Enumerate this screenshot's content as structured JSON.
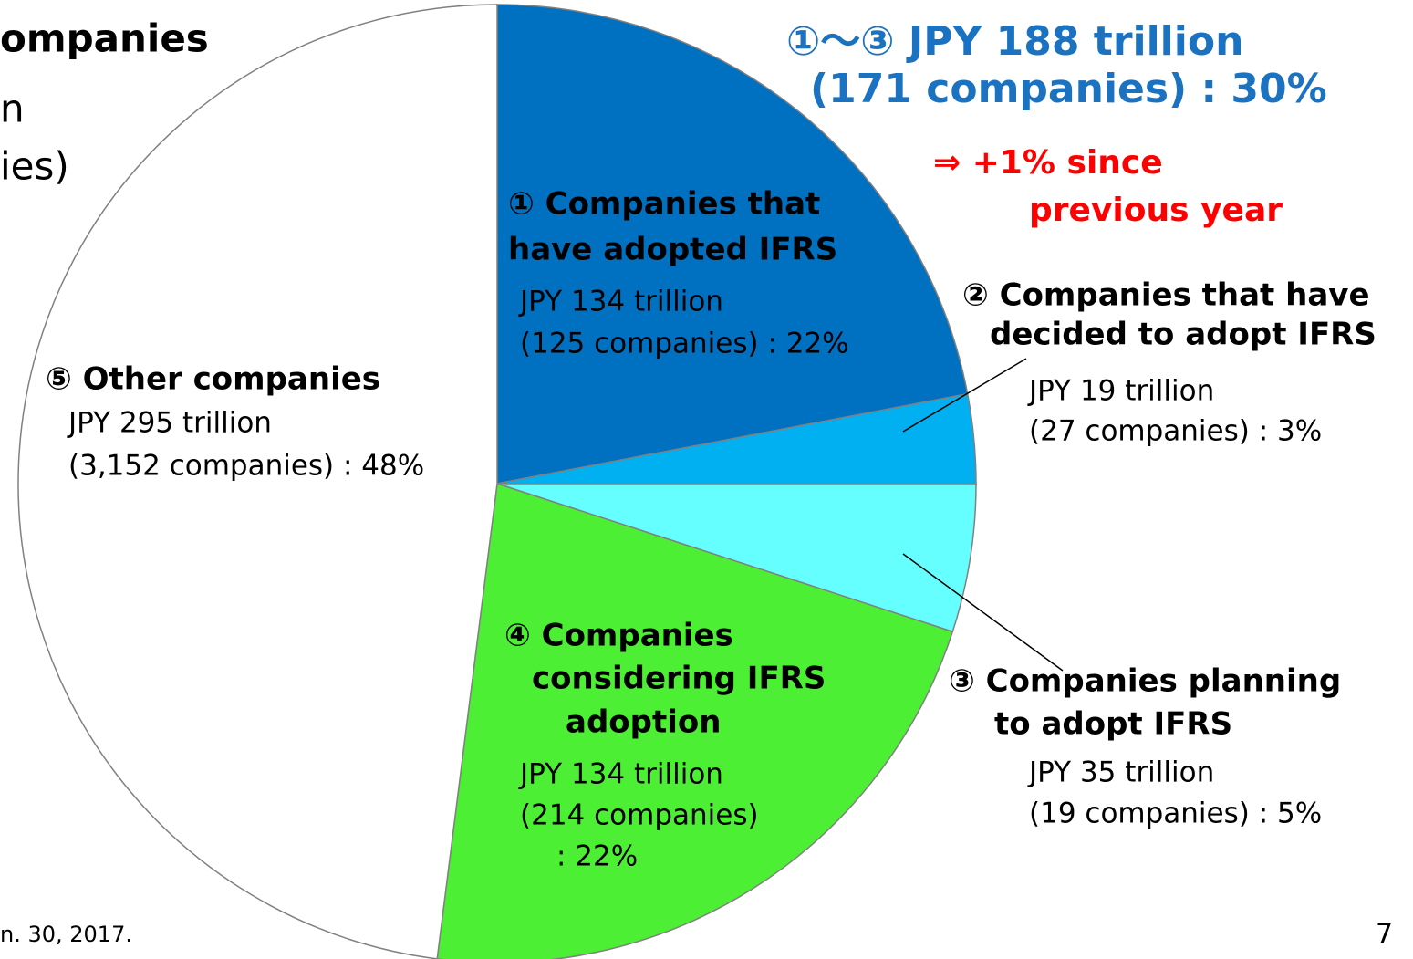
{
  "chart_data": {
    "type": "pie",
    "title_fragments": [
      {
        "text": "ompanies",
        "bold": true
      },
      {
        "text": "n",
        "bold": false
      },
      {
        "text": "ies)",
        "bold": false
      }
    ],
    "categories": [
      [
        "① Companies that",
        "have  adopted IFRS"
      ],
      [
        "② Companies that have",
        "decided to adopt IFRS"
      ],
      [
        "③ Companies planning",
        "to adopt IFRS"
      ],
      [
        "④ Companies",
        "considering IFRS",
        "adoption"
      ],
      [
        "⑤ Other companies"
      ]
    ],
    "values": [
      22,
      3,
      5,
      22,
      48
    ],
    "value_labels": [
      [
        "JPY 134 trillion",
        "(125 companies) : 22%"
      ],
      [
        "JPY 19 trillion",
        "(27 companies) : 3%"
      ],
      [
        "JPY 35 trillion",
        "(19 companies) : 5%"
      ],
      [
        "JPY 134 trillion",
        "(214 companies)",
        ": 22%"
      ],
      [
        "JPY 295 trillion",
        "(3,152 companies) : 48%"
      ]
    ],
    "colors": [
      "#0070c0",
      "#00b0f0",
      "#66ffff",
      "#4cef33",
      "#ffffff"
    ],
    "annotations": [
      [
        "①～③  JPY 188 trillion",
        "(171 companies) : 30%"
      ],
      [
        "⇒ +1% since",
        "previous year"
      ]
    ],
    "footnote": "n. 30, 2017.",
    "page_number": "7"
  }
}
